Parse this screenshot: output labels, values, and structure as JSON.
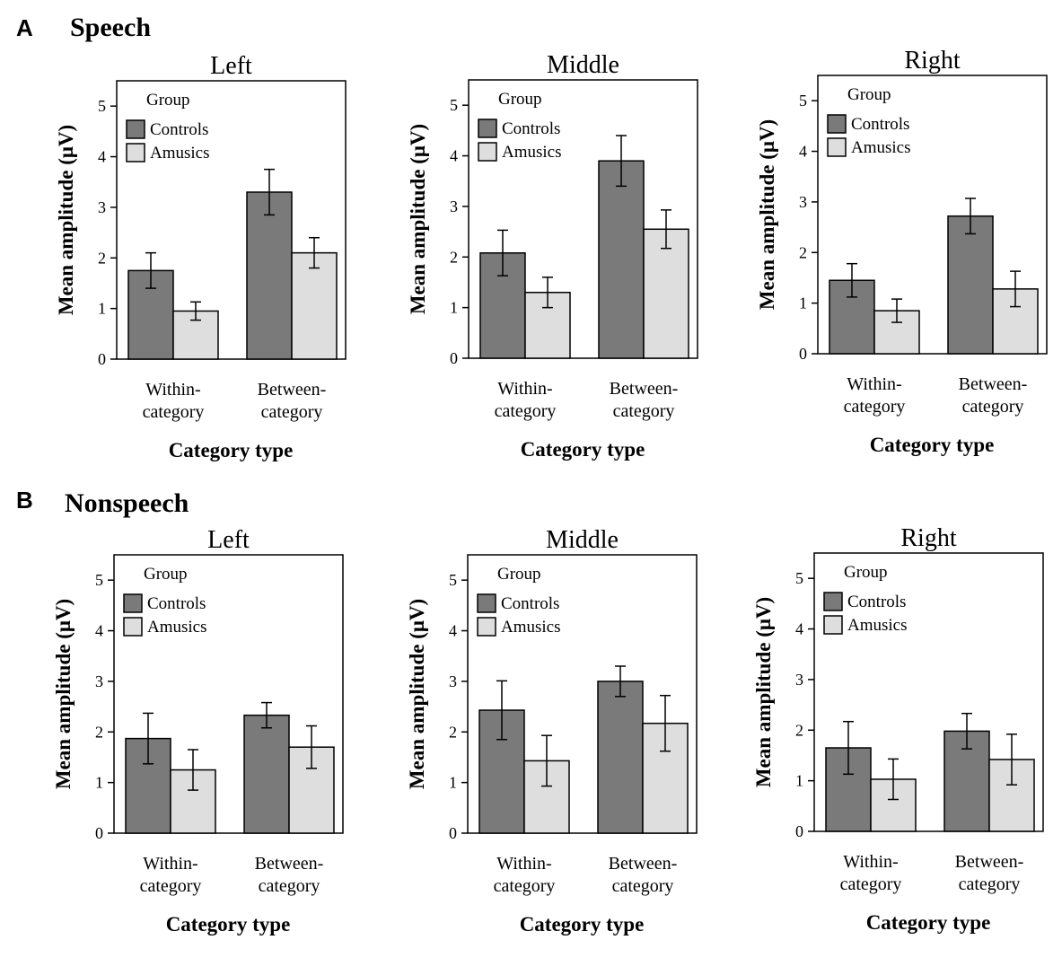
{
  "sections": [
    {
      "letter": "A",
      "title": "Speech"
    },
    {
      "letter": "B",
      "title": "Nonspeech"
    }
  ],
  "colors": {
    "controls": "#7a7a7a",
    "amusics": "#dedede",
    "axis": "#000000"
  },
  "chart_data": [
    {
      "type": "bar",
      "section": "A",
      "title": "Left",
      "xlabel": "Category type",
      "ylabel": "Mean amplitude (μV)",
      "ylim": [
        0,
        5.5
      ],
      "yticks": [
        "0",
        "1",
        "2",
        "3",
        "4",
        "5"
      ],
      "categories": [
        "Within-\ncategory",
        "Between-\ncategory"
      ],
      "legend": {
        "title": "Group",
        "position": "top-left"
      },
      "series": [
        {
          "name": "Controls",
          "values": [
            1.75,
            3.3
          ],
          "errors": [
            0.35,
            0.45
          ]
        },
        {
          "name": "Amusics",
          "values": [
            0.95,
            2.1
          ],
          "errors": [
            0.18,
            0.3
          ]
        }
      ]
    },
    {
      "type": "bar",
      "section": "A",
      "title": "Middle",
      "xlabel": "Category type",
      "ylabel": "Mean amplitude (μV)",
      "ylim": [
        0,
        5.5
      ],
      "yticks": [
        "0",
        "1",
        "2",
        "3",
        "4",
        "5"
      ],
      "categories": [
        "Within-\ncategory",
        "Between-\ncategory"
      ],
      "legend": {
        "title": "Group",
        "position": "top-left"
      },
      "series": [
        {
          "name": "Controls",
          "values": [
            2.08,
            3.9
          ],
          "errors": [
            0.45,
            0.5
          ]
        },
        {
          "name": "Amusics",
          "values": [
            1.3,
            2.55
          ],
          "errors": [
            0.3,
            0.38
          ]
        }
      ]
    },
    {
      "type": "bar",
      "section": "A",
      "title": "Right",
      "xlabel": "Category type",
      "ylabel": "Mean amplitude (μV)",
      "ylim": [
        0,
        5.5
      ],
      "yticks": [
        "0",
        "1",
        "2",
        "3",
        "4",
        "5"
      ],
      "categories": [
        "Within-\ncategory",
        "Between-\ncategory"
      ],
      "legend": {
        "title": "Group",
        "position": "top-left"
      },
      "series": [
        {
          "name": "Controls",
          "values": [
            1.45,
            2.72
          ],
          "errors": [
            0.33,
            0.35
          ]
        },
        {
          "name": "Amusics",
          "values": [
            0.85,
            1.28
          ],
          "errors": [
            0.23,
            0.35
          ]
        }
      ]
    },
    {
      "type": "bar",
      "section": "B",
      "title": "Left",
      "xlabel": "Category type",
      "ylabel": "Mean amplitude (μV)",
      "ylim": [
        0,
        5.5
      ],
      "yticks": [
        "0",
        "1",
        "2",
        "3",
        "4",
        "5"
      ],
      "categories": [
        "Within-\ncategory",
        "Between-\ncategory"
      ],
      "legend": {
        "title": "Group",
        "position": "top-left"
      },
      "series": [
        {
          "name": "Controls",
          "values": [
            1.87,
            2.33
          ],
          "errors": [
            0.5,
            0.25
          ]
        },
        {
          "name": "Amusics",
          "values": [
            1.25,
            1.7
          ],
          "errors": [
            0.4,
            0.42
          ]
        }
      ]
    },
    {
      "type": "bar",
      "section": "B",
      "title": "Middle",
      "xlabel": "Category type",
      "ylabel": "Mean amplitude (μV)",
      "ylim": [
        0,
        5.5
      ],
      "yticks": [
        "0",
        "1",
        "2",
        "3",
        "4",
        "5"
      ],
      "categories": [
        "Within-\ncategory",
        "Between-\ncategory"
      ],
      "legend": {
        "title": "Group",
        "position": "top-left"
      },
      "series": [
        {
          "name": "Controls",
          "values": [
            2.43,
            3.0
          ],
          "errors": [
            0.58,
            0.3
          ]
        },
        {
          "name": "Amusics",
          "values": [
            1.43,
            2.17
          ],
          "errors": [
            0.5,
            0.55
          ]
        }
      ]
    },
    {
      "type": "bar",
      "section": "B",
      "title": "Right",
      "xlabel": "Category type",
      "ylabel": "Mean amplitude (μV)",
      "ylim": [
        0,
        5.5
      ],
      "yticks": [
        "0",
        "1",
        "2",
        "3",
        "4",
        "5"
      ],
      "categories": [
        "Within-\ncategory",
        "Between-\ncategory"
      ],
      "legend": {
        "title": "Group",
        "position": "top-left"
      },
      "series": [
        {
          "name": "Controls",
          "values": [
            1.65,
            1.98
          ],
          "errors": [
            0.52,
            0.35
          ]
        },
        {
          "name": "Amusics",
          "values": [
            1.03,
            1.42
          ],
          "errors": [
            0.4,
            0.5
          ]
        }
      ]
    }
  ]
}
